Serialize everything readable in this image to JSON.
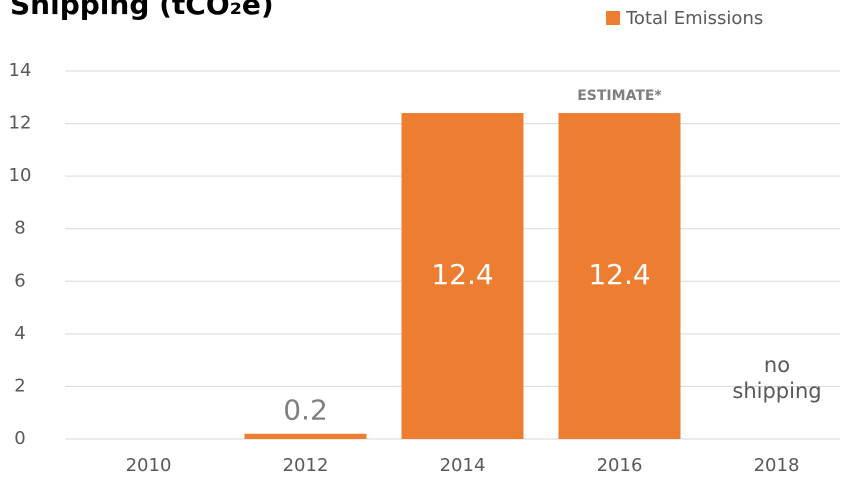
{
  "chart_data": {
    "type": "bar",
    "title": "Shipping (tCO₂e)",
    "categories": [
      "2010",
      "2012",
      "2014",
      "2016",
      "2018"
    ],
    "series": [
      {
        "name": "Total Emissions",
        "color": "#ed7d31",
        "values": [
          null,
          0.2,
          12.4,
          12.4,
          null
        ]
      }
    ],
    "ylim": [
      0,
      14
    ],
    "yticks": [
      0,
      2,
      4,
      6,
      8,
      10,
      12,
      14
    ],
    "grid": true,
    "legend": "top-right",
    "annotations": [
      "ESTIMATE*",
      "no shipping"
    ]
  }
}
